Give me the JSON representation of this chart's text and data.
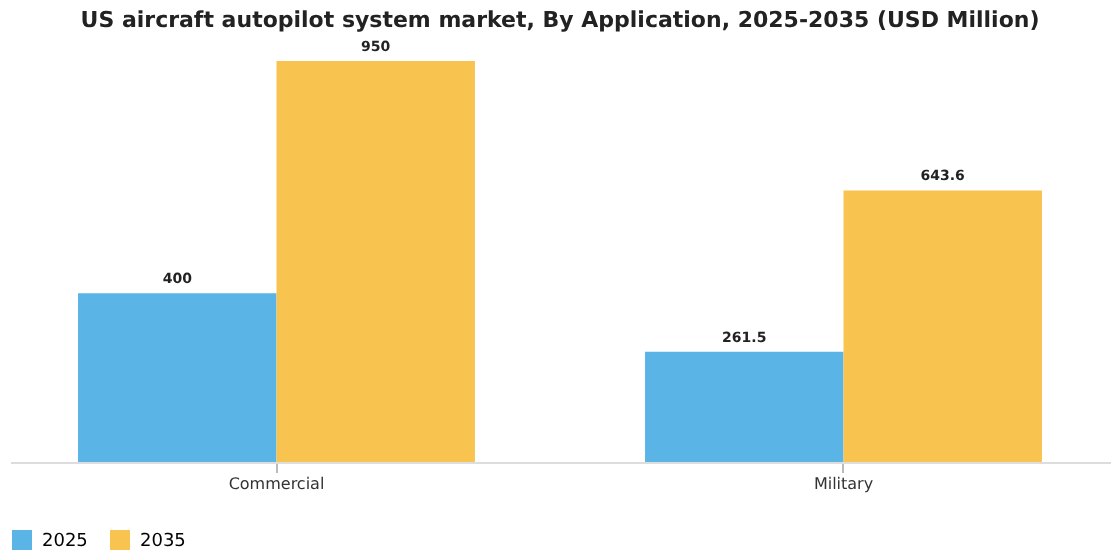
{
  "chart_data": {
    "type": "bar",
    "title": "US aircraft autopilot system market, By Application, 2025-2035 (USD Million)",
    "categories": [
      "Commercial",
      "Military"
    ],
    "series": [
      {
        "name": "2025",
        "color": "#5ab4e5",
        "values": [
          400,
          261.5
        ]
      },
      {
        "name": "2035",
        "color": "#f8c44f",
        "values": [
          950,
          643.6
        ]
      }
    ],
    "data_labels": true,
    "legend": "bottom",
    "grid": false
  }
}
